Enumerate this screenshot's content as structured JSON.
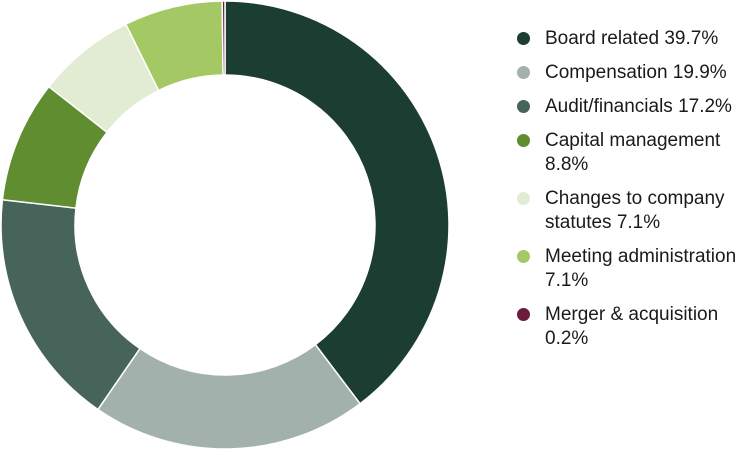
{
  "chart_data": {
    "type": "pie",
    "series": [
      {
        "name": "Board related",
        "label": "Board related 39.7%",
        "value": 39.7,
        "color": "#1b3d32"
      },
      {
        "name": "Compensation",
        "label": "Compensation 19.9%",
        "value": 19.9,
        "color": "#a3b1ac"
      },
      {
        "name": "Audit/financials",
        "label": "Audit/financials 17.2%",
        "value": 17.2,
        "color": "#466459"
      },
      {
        "name": "Capital management",
        "label": "Capital management 8.8%",
        "value": 8.8,
        "color": "#5f8d2f"
      },
      {
        "name": "Changes to company statutes",
        "label": "Changes to company statutes 7.1%",
        "value": 7.1,
        "color": "#e2ecd3"
      },
      {
        "name": "Meeting administration",
        "label": "Meeting administration 7.1%",
        "value": 7.1,
        "color": "#a3c864"
      },
      {
        "name": "Merger & acquisition",
        "label": "Merger & acquisition 0.2%",
        "value": 0.2,
        "color": "#6b1c3b"
      }
    ],
    "donut": true,
    "legend_position": "right"
  }
}
